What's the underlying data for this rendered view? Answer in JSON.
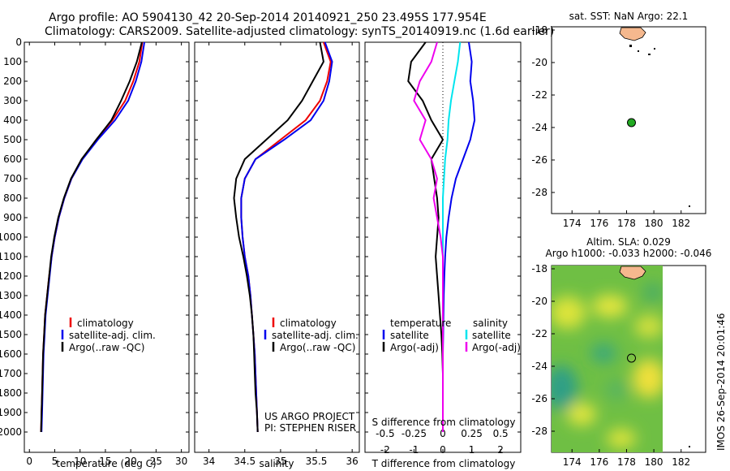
{
  "header": {
    "line1": "Argo profile: AO 5904130_42 20-Sep-2014 20140921_250 23.495S 177.954E",
    "line2": "Climatology: CARS2009. Satellite-adjusted climatology: synTS_20140919.nc (1.6d earlier)"
  },
  "depth_ticks": [
    "0",
    "100",
    "200",
    "300",
    "400",
    "500",
    "600",
    "700",
    "800",
    "900",
    "1000",
    "1100",
    "1200",
    "1300",
    "1400",
    "1500",
    "1600",
    "1700",
    "1800",
    "1900",
    "2000"
  ],
  "colors": {
    "climatology": "#ee0000",
    "satellite": "#0000ee",
    "argo": "#000000",
    "sal_satellite": "#00e5ee",
    "sal_argo": "#ee00ee",
    "land": "#f5b88e"
  },
  "panels": {
    "temperature": {
      "xlabel": "temperature (deg C)",
      "xticks": [
        "0",
        "5",
        "10",
        "15",
        "20",
        "25",
        "30"
      ],
      "legend": [
        "climatology",
        "satellite-adj. clim.",
        "Argo(..raw -QC)"
      ]
    },
    "salinity": {
      "xlabel": "salinity",
      "xticks": [
        "34",
        "34.5",
        "35",
        "35.5",
        "36"
      ],
      "legend": [
        "climatology",
        "satellite-adj. clim.",
        "Argo(..raw -QC)"
      ],
      "note1": "US ARGO PROJECT",
      "note2": "PI: STEPHEN RISER"
    },
    "difference": {
      "xlabel": "T difference from climatology",
      "top_label": "S difference from climatology",
      "t_xticks": [
        "-2",
        "-1",
        "0",
        "1",
        "2"
      ],
      "s_xticks": [
        "-0.5",
        "-0.25",
        "0",
        "0.25",
        "0.5"
      ],
      "legend_temp_head": "temperature",
      "legend_sal_head": "salinity",
      "legend_temp": [
        "satellite",
        "Argo(-adj)"
      ],
      "legend_sal": [
        "satellite",
        "Argo(-adj)"
      ]
    },
    "map_sst": {
      "title": "sat. SST: NaN Argo: 22.1",
      "yticks": [
        "-18",
        "-20",
        "-22",
        "-24",
        "-26",
        "-28"
      ],
      "xticks": [
        "174",
        "176",
        "178",
        "180",
        "182"
      ]
    },
    "map_sla": {
      "title1": "Altim. SLA: 0.029",
      "title2": "Argo h1000: -0.033 h2000: -0.046",
      "yticks": [
        "-18",
        "-20",
        "-22",
        "-24",
        "-26",
        "-28"
      ],
      "xticks": [
        "174",
        "176",
        "178",
        "180",
        "182"
      ]
    }
  },
  "imos_stamp": "IMOS 26-Sep-2014 20:01:46",
  "chart_data": [
    {
      "type": "line",
      "title": "",
      "xlabel": "temperature (deg C)",
      "ylabel": "",
      "xlim": [
        -1,
        31.5
      ],
      "ylim": [
        2050,
        0
      ],
      "series": [
        {
          "name": "climatology",
          "x": [
            22.3,
            21.7,
            20.5,
            18.9,
            16.4,
            13.2,
            10.4,
            8.3,
            6.9,
            5.8,
            5.0,
            4.4,
            3.9,
            3.5,
            3.1,
            2.9,
            2.7,
            2.6,
            2.5,
            2.4,
            2.3
          ],
          "y": [
            0,
            100,
            200,
            300,
            400,
            500,
            600,
            700,
            800,
            900,
            1000,
            1100,
            1200,
            1300,
            1400,
            1500,
            1600,
            1700,
            1800,
            1900,
            2000
          ]
        },
        {
          "name": "satellite-adj. clim.",
          "x": [
            22.7,
            22.1,
            21.0,
            19.5,
            16.9,
            13.5,
            10.5,
            8.3,
            6.9,
            5.8,
            5.0,
            4.4,
            4.0,
            3.6,
            3.2,
            3.0,
            2.8,
            2.7,
            2.6,
            2.5,
            2.4
          ],
          "y": [
            0,
            100,
            200,
            300,
            400,
            500,
            600,
            700,
            800,
            900,
            1000,
            1100,
            1200,
            1300,
            1400,
            1500,
            1600,
            1700,
            1800,
            1900,
            2000
          ]
        },
        {
          "name": "Argo(..raw -QC)",
          "x": [
            22.2,
            21.2,
            19.8,
            18.1,
            16.2,
            13.2,
            10.3,
            8.2,
            6.8,
            5.7,
            4.9,
            4.3,
            3.9,
            3.5,
            3.1,
            2.9,
            2.7,
            2.6,
            2.5,
            2.4,
            2.3
          ],
          "y": [
            0,
            100,
            200,
            300,
            400,
            500,
            600,
            700,
            800,
            900,
            1000,
            1100,
            1200,
            1300,
            1400,
            1500,
            1600,
            1700,
            1800,
            1900,
            2000
          ]
        }
      ]
    },
    {
      "type": "line",
      "title": "",
      "xlabel": "salinity",
      "ylabel": "",
      "xlim": [
        33.8,
        36.1
      ],
      "ylim": [
        2050,
        0
      ],
      "series": [
        {
          "name": "climatology",
          "x": [
            35.6,
            35.7,
            35.65,
            35.55,
            35.35,
            35.0,
            34.65,
            34.5,
            34.45,
            34.45,
            34.47,
            34.5,
            34.55,
            34.58,
            34.6,
            34.62,
            34.64,
            34.65,
            34.66,
            34.67,
            34.68
          ],
          "y": [
            0,
            100,
            200,
            300,
            400,
            500,
            600,
            700,
            800,
            900,
            1000,
            1100,
            1200,
            1300,
            1400,
            1500,
            1600,
            1700,
            1800,
            1900,
            2000
          ]
        },
        {
          "name": "satellite-adj. clim.",
          "x": [
            35.62,
            35.72,
            35.68,
            35.6,
            35.42,
            35.05,
            34.65,
            34.5,
            34.45,
            34.45,
            34.47,
            34.5,
            34.55,
            34.58,
            34.6,
            34.62,
            34.64,
            34.65,
            34.66,
            34.67,
            34.68
          ],
          "y": [
            0,
            100,
            200,
            300,
            400,
            500,
            600,
            700,
            800,
            900,
            1000,
            1100,
            1200,
            1300,
            1400,
            1500,
            1600,
            1700,
            1800,
            1900,
            2000
          ]
        },
        {
          "name": "Argo(..raw -QC)",
          "x": [
            35.55,
            35.6,
            35.45,
            35.3,
            35.1,
            34.8,
            34.5,
            34.38,
            34.35,
            34.38,
            34.42,
            34.48,
            34.53,
            34.57,
            34.6,
            34.62,
            34.63,
            34.64,
            34.65,
            34.67,
            34.68
          ],
          "y": [
            0,
            100,
            200,
            300,
            400,
            500,
            600,
            700,
            800,
            900,
            1000,
            1100,
            1200,
            1300,
            1400,
            1500,
            1600,
            1700,
            1800,
            1900,
            2000
          ]
        }
      ]
    },
    {
      "type": "line",
      "title": "",
      "xlabel": "T difference from climatology",
      "ylabel": "",
      "xlim": [
        -2.7,
        2.7
      ],
      "ylim": [
        2050,
        0
      ],
      "series": [
        {
          "name": "temperature satellite",
          "x": [
            0.9,
            1.0,
            0.95,
            1.05,
            1.1,
            0.95,
            0.7,
            0.45,
            0.3,
            0.2,
            0.12,
            0.08,
            0.05,
            0.03,
            0.02,
            0.01,
            0.0,
            0.0,
            0.0,
            0.0,
            0.0
          ],
          "y": [
            0,
            100,
            200,
            300,
            400,
            500,
            600,
            700,
            800,
            900,
            1000,
            1100,
            1200,
            1300,
            1400,
            1500,
            1600,
            1700,
            1800,
            1900,
            2000
          ]
        },
        {
          "name": "temperature Argo(-adj)",
          "x": [
            -0.6,
            -1.1,
            -1.2,
            -0.7,
            -0.4,
            0.0,
            -0.4,
            -0.3,
            -0.2,
            -0.15,
            -0.2,
            -0.25,
            -0.2,
            -0.15,
            -0.1,
            -0.05,
            -0.02,
            0.0,
            0.0,
            0.0,
            0.0
          ],
          "y": [
            0,
            100,
            200,
            300,
            400,
            500,
            600,
            700,
            800,
            900,
            1000,
            1100,
            1200,
            1300,
            1400,
            1500,
            1600,
            1700,
            1800,
            1900,
            2000
          ]
        }
      ]
    },
    {
      "type": "line",
      "title": "",
      "xlabel": "S difference from climatology",
      "ylabel": "",
      "xlim": [
        -0.675,
        0.675
      ],
      "ylim": [
        2050,
        0
      ],
      "series": [
        {
          "name": "salinity satellite",
          "x": [
            0.15,
            0.13,
            0.1,
            0.07,
            0.05,
            0.04,
            0.02,
            0.01,
            0.0,
            0.0,
            0.0,
            0.0,
            0.0,
            0.0,
            0.0,
            0.0,
            0.0,
            0.0,
            0.0,
            0.0,
            0.0
          ],
          "y": [
            0,
            100,
            200,
            300,
            400,
            500,
            600,
            700,
            800,
            900,
            1000,
            1100,
            1200,
            1300,
            1400,
            1500,
            1600,
            1700,
            1800,
            1900,
            2000
          ]
        },
        {
          "name": "salinity Argo(-adj)",
          "x": [
            -0.05,
            -0.1,
            -0.2,
            -0.25,
            -0.15,
            -0.2,
            -0.1,
            -0.05,
            -0.08,
            -0.05,
            -0.02,
            0.0,
            0.0,
            0.0,
            0.0,
            0.0,
            0.0,
            0.0,
            0.0,
            0.0,
            0.0
          ],
          "y": [
            0,
            100,
            200,
            300,
            400,
            500,
            600,
            700,
            800,
            900,
            1000,
            1100,
            1200,
            1300,
            1400,
            1500,
            1600,
            1700,
            1800,
            1900,
            2000
          ]
        }
      ]
    },
    {
      "type": "scatter",
      "title": "sat. SST: NaN Argo: 22.1",
      "xlabel": "",
      "ylabel": "",
      "xlim": [
        172.5,
        183.8
      ],
      "ylim": [
        -29.3,
        -17.8
      ],
      "series": [
        {
          "name": "",
          "x": [
            177.954
          ],
          "y": [
            -23.495
          ]
        }
      ]
    },
    {
      "type": "heatmap",
      "title": "Altim. SLA: 0.029",
      "xlabel": "",
      "ylabel": "",
      "xlim": [
        172.5,
        183.8
      ],
      "ylim": [
        -29.3,
        -17.8
      ],
      "series": [
        {
          "name": "",
          "x": [
            177.954
          ],
          "y": [
            -23.495
          ]
        }
      ]
    }
  ]
}
